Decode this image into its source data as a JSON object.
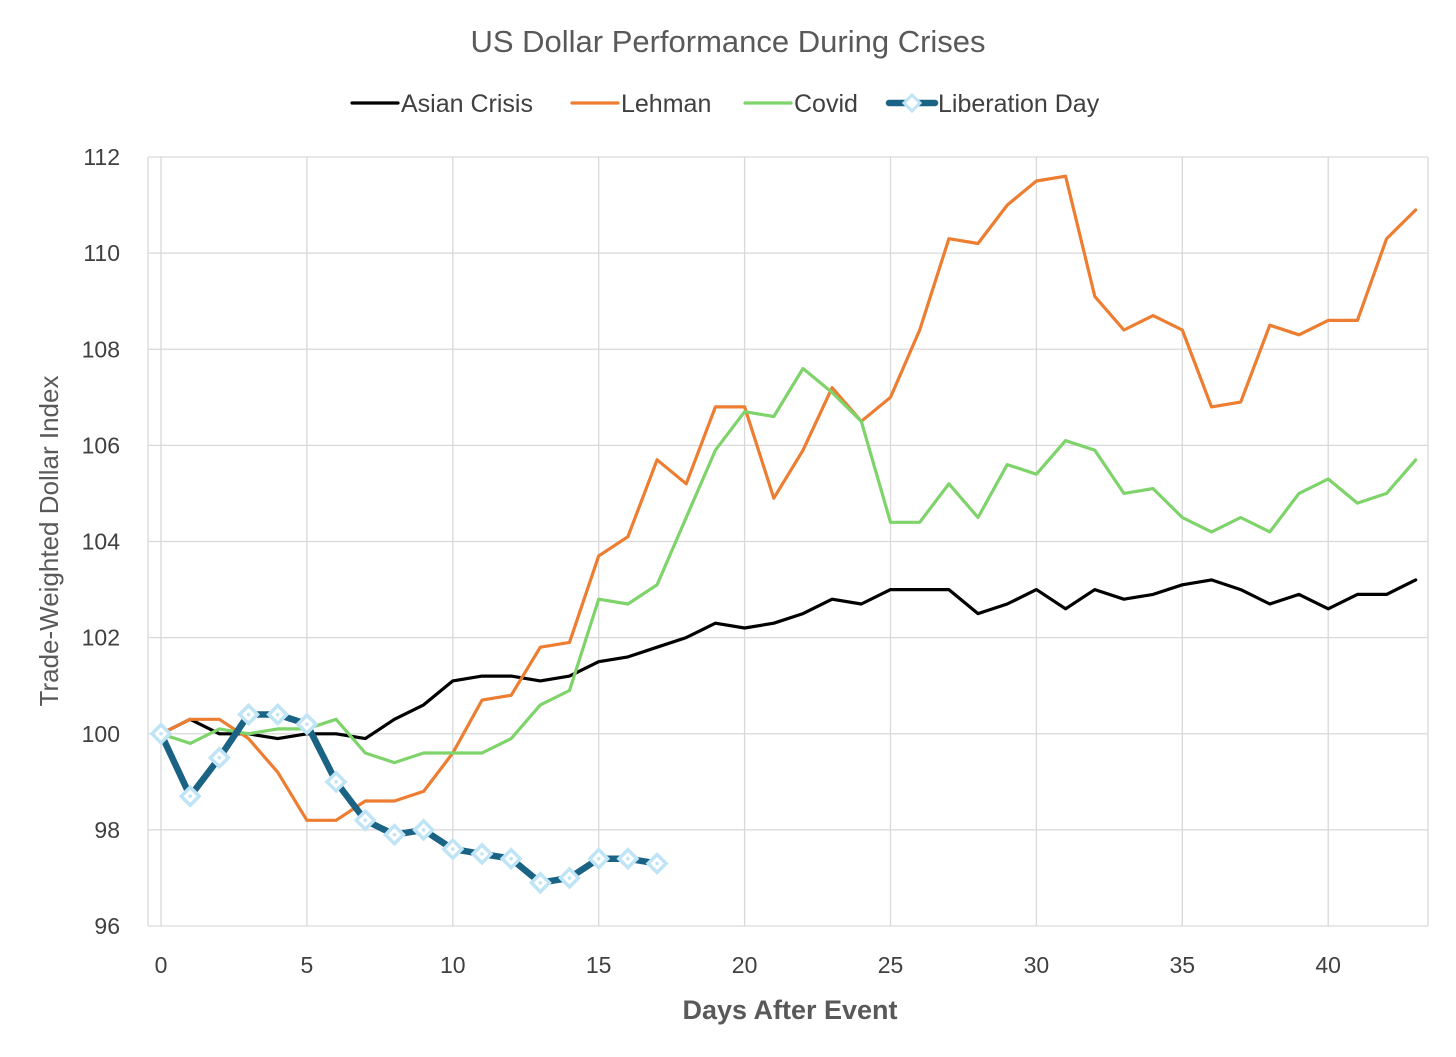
{
  "chart_data": {
    "type": "line",
    "title": "US Dollar Performance During Crises",
    "xlabel": "Days After Event",
    "ylabel": "Trade-Weighted Dollar Index",
    "xlim": [
      0,
      43
    ],
    "ylim": [
      96,
      112
    ],
    "x_ticks": [
      0,
      5,
      10,
      15,
      20,
      25,
      30,
      35,
      40
    ],
    "y_ticks": [
      96,
      98,
      100,
      102,
      104,
      106,
      108,
      110,
      112
    ],
    "grid": true,
    "legend_position": "top",
    "series": [
      {
        "name": "Asian Crisis",
        "color": "#000000",
        "x": [
          0,
          1,
          2,
          3,
          4,
          5,
          6,
          7,
          8,
          9,
          10,
          11,
          12,
          13,
          14,
          15,
          16,
          17,
          18,
          19,
          20,
          21,
          22,
          23,
          24,
          25,
          26,
          27,
          28,
          29,
          30,
          31,
          32,
          33,
          34,
          35,
          36,
          37,
          38,
          39,
          40,
          41,
          42,
          43
        ],
        "values": [
          100.0,
          100.3,
          100.0,
          100.0,
          99.9,
          100.0,
          100.0,
          99.9,
          100.3,
          100.6,
          101.1,
          101.2,
          101.2,
          101.1,
          101.2,
          101.5,
          101.6,
          101.8,
          102.0,
          102.3,
          102.2,
          102.3,
          102.5,
          102.8,
          102.7,
          103.0,
          103.0,
          103.0,
          102.5,
          102.7,
          103.0,
          102.6,
          103.0,
          102.8,
          102.9,
          103.1,
          103.2,
          103.0,
          102.7,
          102.9,
          102.6,
          102.9,
          102.9,
          103.2
        ]
      },
      {
        "name": "Lehman",
        "color": "#ed7d31",
        "x": [
          0,
          1,
          2,
          3,
          4,
          5,
          6,
          7,
          8,
          9,
          10,
          11,
          12,
          13,
          14,
          15,
          16,
          17,
          18,
          19,
          20,
          21,
          22,
          23,
          24,
          25,
          26,
          27,
          28,
          29,
          30,
          31,
          32,
          33,
          34,
          35,
          36,
          37,
          38,
          39,
          40,
          41,
          42,
          43
        ],
        "values": [
          100.0,
          100.3,
          100.3,
          99.9,
          99.2,
          98.2,
          98.2,
          98.6,
          98.6,
          98.8,
          99.6,
          100.7,
          100.8,
          101.8,
          101.9,
          103.7,
          104.1,
          105.7,
          105.2,
          106.8,
          106.8,
          104.9,
          105.9,
          107.2,
          106.5,
          107.0,
          108.4,
          110.3,
          110.2,
          111.0,
          111.5,
          111.6,
          109.1,
          108.4,
          108.7,
          108.4,
          106.8,
          106.9,
          108.5,
          108.3,
          108.6,
          108.6,
          110.3,
          110.9
        ]
      },
      {
        "name": "Covid",
        "color": "#7ed36b",
        "x": [
          0,
          1,
          2,
          3,
          4,
          5,
          6,
          7,
          8,
          9,
          10,
          11,
          12,
          13,
          14,
          15,
          16,
          17,
          18,
          19,
          20,
          21,
          22,
          23,
          24,
          25,
          26,
          27,
          28,
          29,
          30,
          31,
          32,
          33,
          34,
          35,
          36,
          37,
          38,
          39,
          40,
          41,
          42,
          43
        ],
        "values": [
          100.0,
          99.8,
          100.1,
          100.0,
          100.1,
          100.1,
          100.3,
          99.6,
          99.4,
          99.6,
          99.6,
          99.6,
          99.9,
          100.6,
          100.9,
          102.8,
          102.7,
          103.1,
          104.5,
          105.9,
          106.7,
          106.6,
          107.6,
          107.1,
          106.5,
          104.4,
          104.4,
          105.2,
          104.5,
          105.6,
          105.4,
          106.1,
          105.9,
          105.0,
          105.1,
          104.5,
          104.2,
          104.5,
          104.2,
          105.0,
          105.3,
          104.8,
          105.0,
          105.7
        ]
      },
      {
        "name": "Liberation Day",
        "color": "#1a6385",
        "marker_color": "#bfe4f6",
        "x": [
          0,
          1,
          2,
          3,
          4,
          5,
          6,
          7,
          8,
          9,
          10,
          11,
          12,
          13,
          14,
          15,
          16,
          17
        ],
        "values": [
          100.0,
          98.7,
          99.5,
          100.4,
          100.4,
          100.2,
          99.0,
          98.2,
          97.9,
          98.0,
          97.6,
          97.5,
          97.4,
          96.9,
          97.0,
          97.4,
          97.4,
          97.3
        ]
      }
    ]
  }
}
